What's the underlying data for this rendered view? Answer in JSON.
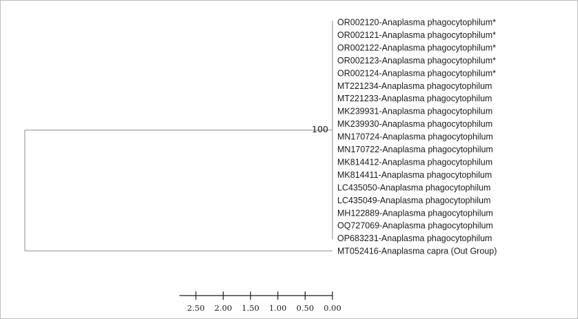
{
  "tree": {
    "bootstrap": "100",
    "ingroup_taxa": [
      "OR002120-Anaplasma phagocytophilum*",
      "OR002121-Anaplasma phagocytophilum*",
      "OR002122-Anaplasma phagocytophilum*",
      "OR002123-Anaplasma phagocytophilum*",
      "OR002124-Anaplasma phagocytophilum*",
      "MT221234-Anaplasma phagocytophilum",
      "MT221233-Anaplasma phagocytophilum",
      "MK239931-Anaplasma phagocytophilum",
      "MK239930-Anaplasma phagocytophilum",
      "MN170724-Anaplasma phagocytophilum",
      "MN170722-Anaplasma phagocytophilum",
      "MK814412-Anaplasma phagocytophilum",
      "MK814411-Anaplasma phagocytophilum",
      "LC435050-Anaplasma phagocytophilum",
      "LC435049-Anaplasma phagocytophilum",
      "MH122889-Anaplasma phagocytophilum",
      "OQ727069-Anaplasma phagocytophilum",
      "OP683231-Anaplasma phagocytophilum"
    ],
    "outgroup_taxon": "MT052416-Anaplasma capra (Out Group)"
  },
  "scale_axis": {
    "ticks": [
      "2.50",
      "2.00",
      "1.50",
      "1.00",
      "0.50",
      "0.00"
    ],
    "range": [
      2.8,
      0.0
    ]
  }
}
